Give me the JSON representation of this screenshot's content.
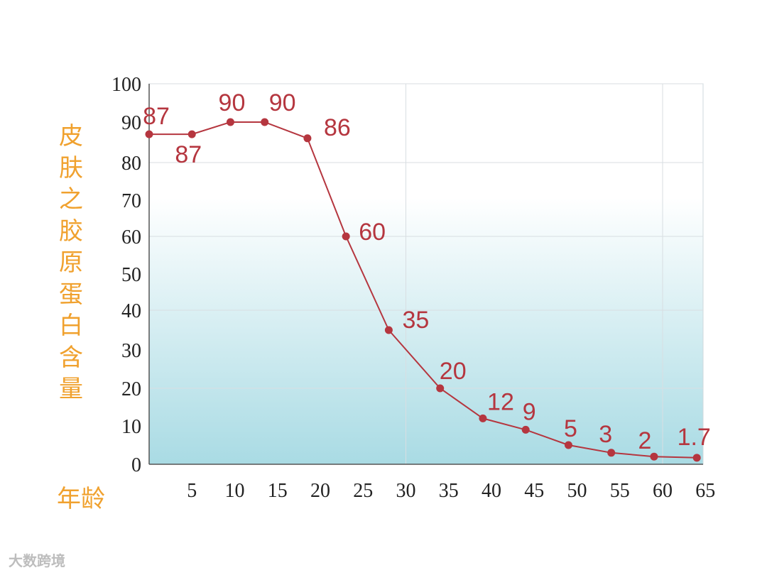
{
  "chart_data": {
    "type": "line",
    "ylabel": "皮肤之胶原蛋白含量",
    "xlabel": "年龄",
    "x": [
      0,
      5,
      9.5,
      13.5,
      18.5,
      23,
      28,
      34,
      39,
      44,
      49,
      54,
      59,
      64
    ],
    "values": [
      87,
      87,
      90,
      90,
      86,
      60,
      35,
      20,
      12,
      9,
      5,
      3,
      2,
      1.7
    ],
    "data_labels": [
      "87",
      "87",
      "90",
      "90",
      "86",
      "60",
      "35",
      "20",
      "12",
      "9",
      "5",
      "3",
      "2",
      "1.7"
    ],
    "x_ticks": [
      "5",
      "10",
      "15",
      "20",
      "25",
      "30",
      "35",
      "40",
      "45",
      "50",
      "55",
      "60",
      "65"
    ],
    "y_ticks": [
      "0",
      "10",
      "20",
      "30",
      "40",
      "50",
      "60",
      "70",
      "80",
      "90",
      "100"
    ],
    "ylim": [
      0,
      100
    ],
    "grid": true,
    "line_color": "#b5363f",
    "label_color": "#b5363f",
    "title_color": "#f0a12e"
  },
  "watermark": "大数跨境"
}
